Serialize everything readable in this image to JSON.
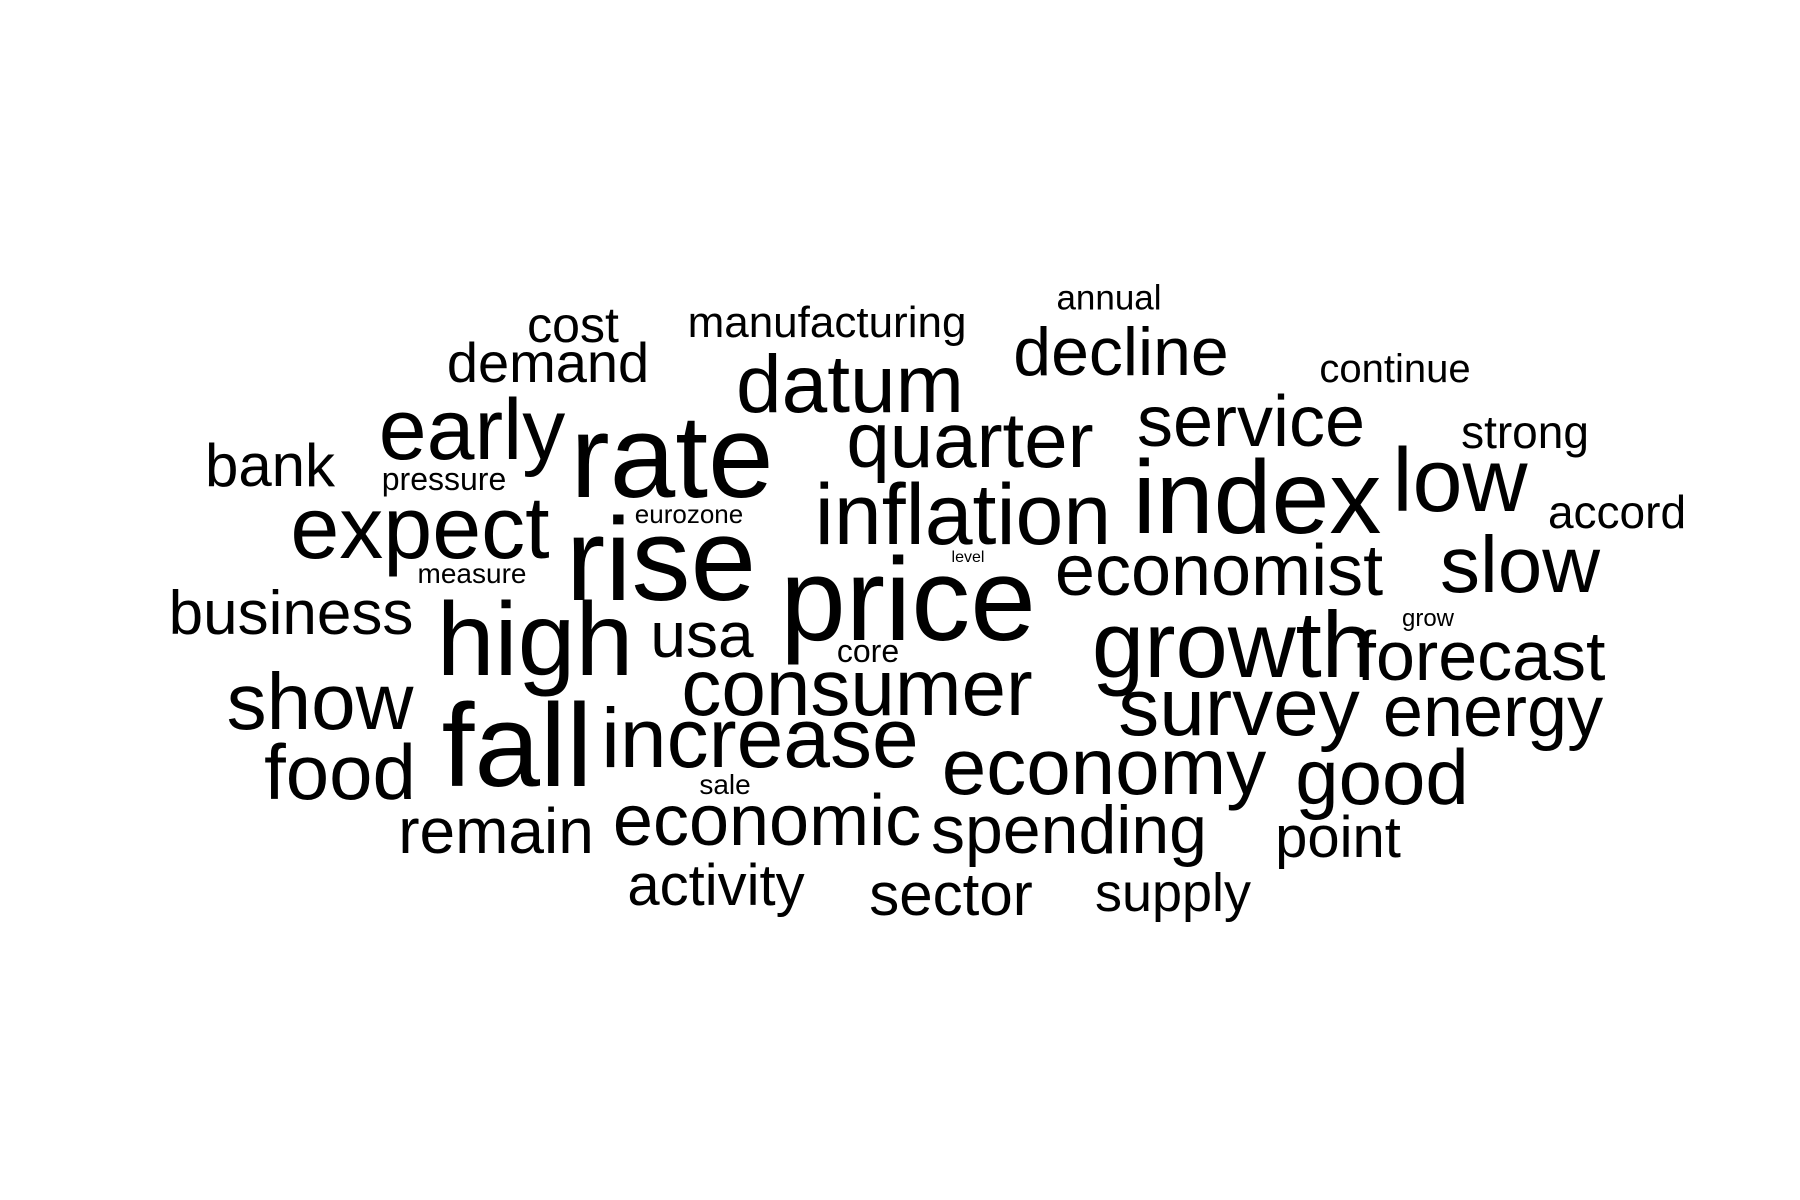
{
  "words": [
    "annual",
    "cost",
    "manufacturing",
    "demand",
    "decline",
    "continue",
    "datum",
    "early",
    "service",
    "rate",
    "quarter",
    "strong",
    "bank",
    "pressure",
    "low",
    "index",
    "inflation",
    "accord",
    "expect",
    "eurozone",
    "rise",
    "level",
    "measure",
    "slow",
    "economist",
    "price",
    "business",
    "grow",
    "high",
    "usa",
    "core",
    "growth",
    "forecast",
    "consumer",
    "show",
    "survey",
    "energy",
    "fall",
    "increase",
    "food",
    "economy",
    "good",
    "sale",
    "economic",
    "remain",
    "spending",
    "point",
    "activity",
    "sector",
    "supply"
  ],
  "text_color": "#000000"
}
